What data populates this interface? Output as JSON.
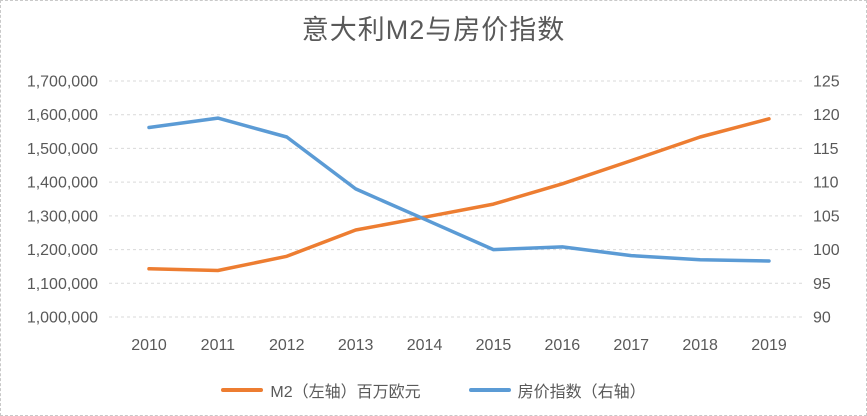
{
  "chart_data": {
    "type": "line",
    "title": "意大利M2与房价指数",
    "categories": [
      "2010",
      "2011",
      "2012",
      "2013",
      "2014",
      "2015",
      "2016",
      "2017",
      "2018",
      "2019"
    ],
    "series": [
      {
        "name": "M2（左轴）百万欧元",
        "axis": "left",
        "color": "#ED7D31",
        "values": [
          1143000,
          1138000,
          1180000,
          1258000,
          1296000,
          1335000,
          1395000,
          1464000,
          1534000,
          1588000
        ]
      },
      {
        "name": "房价指数（右轴）",
        "axis": "right",
        "color": "#5B9BD5",
        "values": [
          118.1,
          119.5,
          116.7,
          109.0,
          104.5,
          100.0,
          100.4,
          99.1,
          98.5,
          98.3
        ]
      }
    ],
    "left_axis": {
      "min": 1000000,
      "max": 1700000,
      "tick_labels": [
        "1,700,000",
        "1,600,000",
        "1,500,000",
        "1,400,000",
        "1,300,000",
        "1,200,000",
        "1,100,000",
        "1,000,000"
      ]
    },
    "right_axis": {
      "min": 90,
      "max": 125,
      "tick_labels": [
        "125",
        "120",
        "115",
        "110",
        "105",
        "100",
        "95",
        "90"
      ]
    },
    "grid": true,
    "legend_position": "bottom"
  },
  "styles": {
    "text_color": "#595959",
    "grid_color": "#D9D9D9",
    "border_color": "#C9C9C9",
    "background": "#FFFFFF"
  }
}
